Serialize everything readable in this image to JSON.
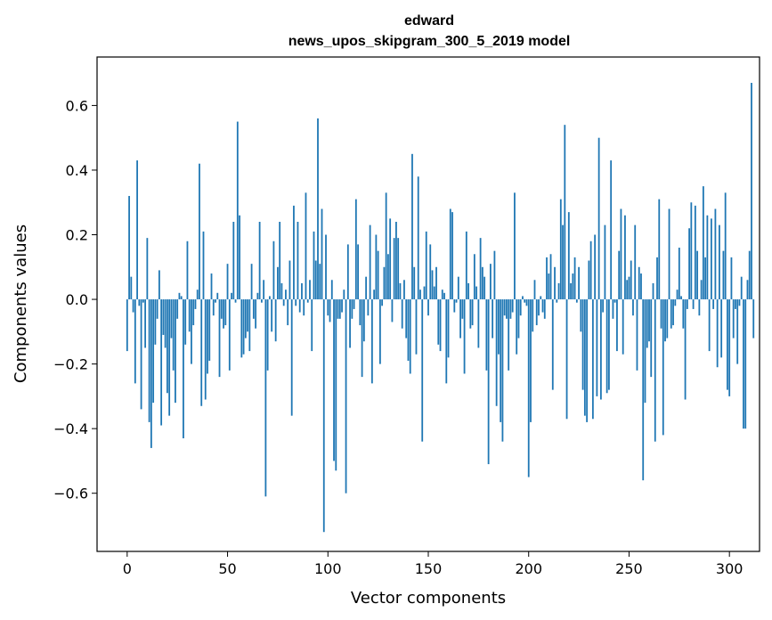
{
  "chart_data": {
    "type": "bar",
    "title": "edward",
    "subtitle": "news_upos_skipgram_300_5_2019 model",
    "xlabel": "Vector components",
    "ylabel": "Components values",
    "xlim": [
      -15,
      315
    ],
    "ylim": [
      -0.78,
      0.75
    ],
    "xticks": [
      0,
      50,
      100,
      150,
      200,
      250,
      300
    ],
    "yticks": [
      -0.6,
      -0.4,
      -0.2,
      0.0,
      0.2,
      0.4,
      0.6
    ],
    "ytick_labels": [
      "−0.6",
      "−0.4",
      "−0.2",
      "0.0",
      "0.2",
      "0.4",
      "0.6"
    ],
    "grid": false,
    "bar_color": "#1f77b4",
    "values": [
      -0.16,
      0.32,
      0.07,
      -0.04,
      -0.26,
      0.43,
      -0.02,
      -0.34,
      -0.01,
      -0.15,
      0.19,
      -0.38,
      -0.46,
      -0.32,
      -0.14,
      -0.06,
      0.09,
      -0.39,
      -0.11,
      -0.15,
      -0.29,
      -0.36,
      -0.12,
      -0.22,
      -0.32,
      -0.06,
      0.02,
      0.01,
      -0.43,
      -0.14,
      0.18,
      -0.1,
      -0.2,
      -0.08,
      -0.03,
      0.03,
      0.42,
      -0.33,
      0.21,
      -0.31,
      -0.23,
      -0.19,
      0.08,
      -0.05,
      -0.01,
      0.02,
      -0.24,
      -0.06,
      -0.09,
      -0.08,
      0.11,
      -0.22,
      0.02,
      0.24,
      -0.01,
      0.55,
      0.26,
      -0.18,
      -0.17,
      -0.12,
      -0.1,
      -0.16,
      0.11,
      -0.06,
      -0.09,
      0.02,
      0.24,
      -0.01,
      0.06,
      -0.61,
      -0.22,
      0.01,
      -0.1,
      0.18,
      -0.13,
      0.1,
      0.24,
      0.05,
      -0.02,
      0.03,
      -0.08,
      0.12,
      -0.36,
      0.29,
      -0.02,
      0.24,
      -0.04,
      0.05,
      -0.05,
      0.33,
      -0.01,
      0.06,
      -0.16,
      0.21,
      0.12,
      0.56,
      0.11,
      0.28,
      -0.72,
      0.2,
      -0.05,
      -0.07,
      0.06,
      -0.5,
      -0.53,
      -0.06,
      -0.06,
      -0.04,
      0.03,
      -0.6,
      0.17,
      -0.15,
      -0.06,
      -0.03,
      0.31,
      0.17,
      -0.08,
      -0.24,
      -0.13,
      0.07,
      -0.05,
      0.23,
      -0.26,
      0.03,
      0.2,
      0.15,
      -0.2,
      -0.02,
      0.1,
      0.33,
      0.14,
      0.25,
      -0.07,
      0.19,
      0.24,
      0.19,
      0.05,
      -0.09,
      0.06,
      -0.12,
      -0.19,
      -0.23,
      0.45,
      0.1,
      -0.17,
      0.38,
      0.03,
      -0.44,
      0.04,
      0.21,
      -0.05,
      0.17,
      0.09,
      0.04,
      0.1,
      -0.14,
      -0.16,
      0.03,
      0.02,
      -0.26,
      -0.18,
      0.28,
      0.27,
      -0.04,
      -0.01,
      0.07,
      -0.12,
      -0.06,
      -0.23,
      0.21,
      0.05,
      -0.09,
      -0.08,
      0.14,
      0.04,
      -0.15,
      0.19,
      0.1,
      0.07,
      -0.22,
      -0.51,
      0.11,
      -0.12,
      0.15,
      -0.33,
      -0.17,
      -0.38,
      -0.44,
      -0.05,
      -0.06,
      -0.22,
      -0.06,
      -0.04,
      0.33,
      -0.17,
      -0.12,
      -0.05,
      0.01,
      -0.01,
      -0.02,
      -0.55,
      -0.38,
      -0.1,
      0.06,
      -0.08,
      -0.05,
      0.01,
      -0.04,
      -0.06,
      0.13,
      0.08,
      0.14,
      -0.28,
      0.1,
      -0.01,
      0.05,
      0.31,
      0.23,
      0.54,
      -0.37,
      0.27,
      0.05,
      0.08,
      0.13,
      -0.01,
      0.1,
      -0.1,
      -0.28,
      -0.36,
      -0.38,
      0.12,
      0.18,
      -0.37,
      0.2,
      -0.3,
      0.5,
      -0.31,
      -0.04,
      0.23,
      -0.29,
      -0.28,
      0.43,
      -0.06,
      -0.01,
      -0.16,
      0.15,
      0.28,
      -0.17,
      0.26,
      0.06,
      0.07,
      0.12,
      -0.05,
      0.23,
      -0.22,
      0.1,
      0.08,
      -0.56,
      -0.32,
      -0.15,
      -0.13,
      -0.24,
      0.05,
      -0.44,
      0.13,
      0.31,
      -0.09,
      -0.42,
      -0.13,
      -0.12,
      0.28,
      -0.09,
      -0.08,
      -0.02,
      0.03,
      0.16,
      0.01,
      -0.09,
      -0.31,
      -0.03,
      0.22,
      0.3,
      -0.03,
      0.29,
      0.15,
      -0.05,
      0.06,
      0.35,
      0.13,
      0.26,
      -0.16,
      0.25,
      -0.03,
      0.28,
      -0.21,
      0.23,
      -0.18,
      0.15,
      0.33,
      -0.28,
      -0.3,
      0.13,
      -0.12,
      -0.03,
      -0.2,
      -0.02,
      0.07,
      -0.4,
      -0.4,
      0.06,
      0.15,
      0.67,
      -0.12
    ]
  }
}
